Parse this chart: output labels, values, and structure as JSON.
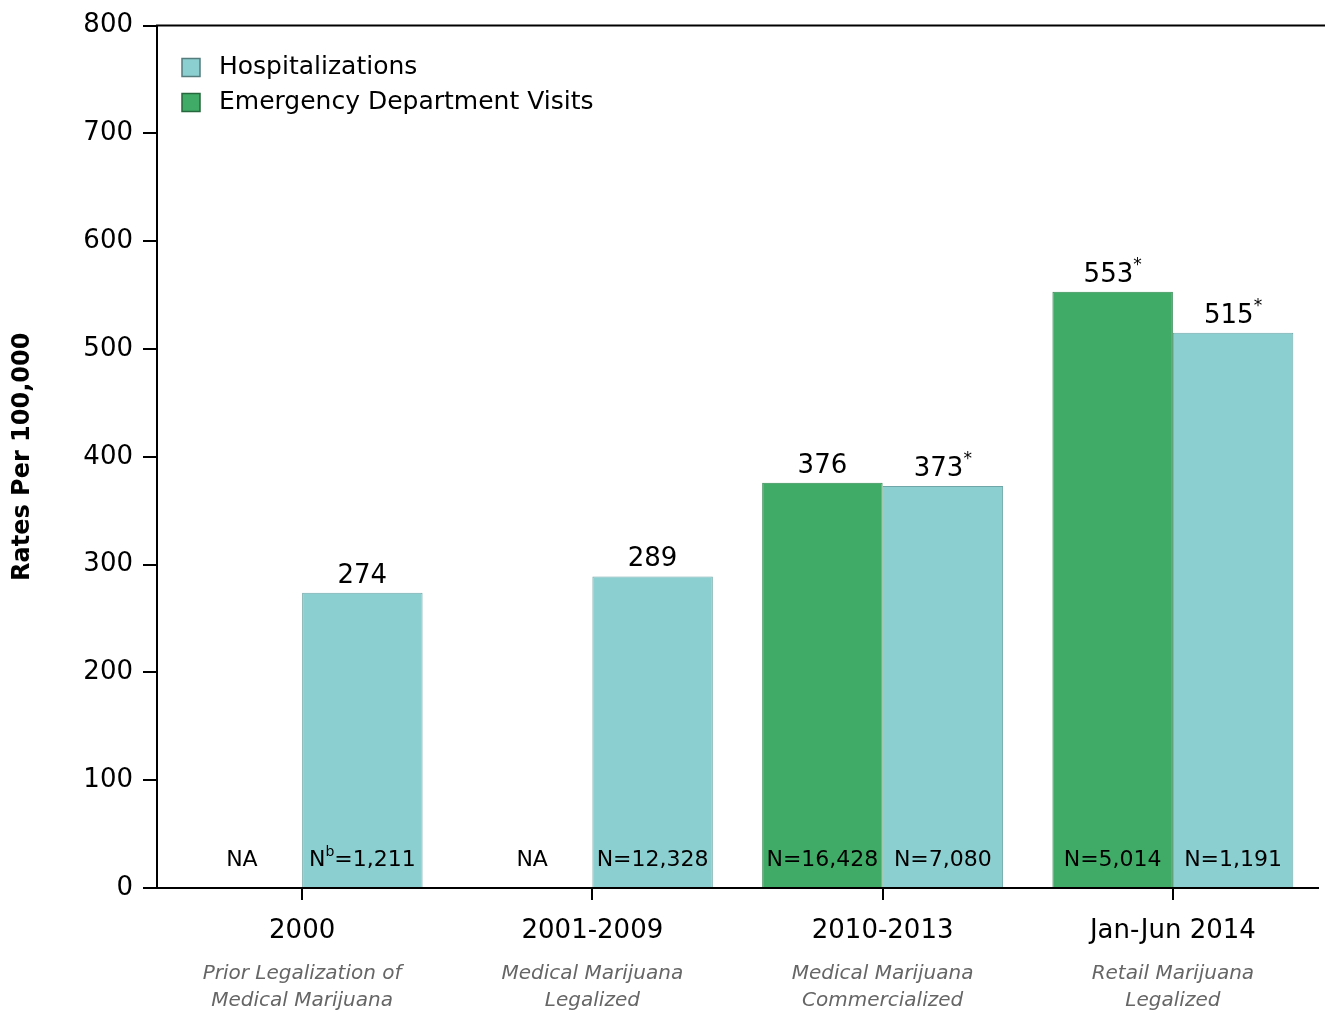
{
  "chart_data": {
    "type": "bar",
    "ylabel": "Rates Per 100,000",
    "categories": [
      "2000",
      "2001-2009",
      "2010-2013",
      "Jan-Jun 2014"
    ],
    "series": [
      {
        "name": "Emergency Department Visits",
        "color": "#3fab66",
        "values": [
          null,
          null,
          376,
          553
        ],
        "value_labels": [
          null,
          null,
          "376",
          "553$^{*}$"
        ]
      },
      {
        "name": "Hospitalizations",
        "color": "#8ccfd1",
        "values": [
          274,
          289,
          373,
          515
        ],
        "value_labels": [
          "274",
          "289",
          "373$^{*}$",
          "515$^{*}$"
        ]
      }
    ],
    "ylim": [
      0,
      800
    ],
    "yticks": [
      0,
      100,
      200,
      300,
      400,
      500,
      600,
      700,
      800
    ],
    "grid": false,
    "legend": "top left",
    "annotations": [
      {
        "text": "NA",
        "x": "2000",
        "y": 0
      },
      {
        "text": "N$^{b}$=1,211",
        "x": "2000",
        "y": 0
      },
      {
        "text": "NA",
        "x": "2001-2009",
        "y": 0
      },
      {
        "text": "N=12,328",
        "x": "2001-2009",
        "y": 0
      },
      {
        "text": "N=16,428",
        "x": "2010-2013",
        "y": 0
      },
      {
        "text": "N=7,080",
        "x": "2010-2013",
        "y": 0
      },
      {
        "text": "N=5,014",
        "x": "Jan-Jun 2014",
        "y": 0
      },
      {
        "text": "N=1,191",
        "x": "Jan-Jun 2014",
        "y": 0
      },
      "Prior Legalization of Medical Marijuana",
      "Medical Marijuana Legalized",
      "Medical Marijuana Commercialized",
      "Retail Marijuana Legalized"
    ]
  }
}
